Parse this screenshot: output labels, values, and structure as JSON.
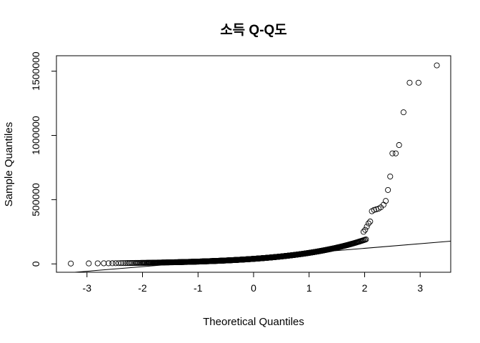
{
  "chart_data": {
    "type": "scatter",
    "title": "소득 Q-Q도",
    "xlabel": "Theoretical Quantiles",
    "ylabel": "Sample Quantiles",
    "xlim": [
      -3.55,
      3.55
    ],
    "ylim": [
      -65000,
      1620000
    ],
    "x_ticks": [
      -3,
      -2,
      -1,
      0,
      1,
      2,
      3
    ],
    "x_tick_labels": [
      "-3",
      "-2",
      "-1",
      "0",
      "1",
      "2",
      "3"
    ],
    "y_ticks": [
      0,
      500000,
      1000000,
      1500000
    ],
    "y_tick_labels": [
      "0",
      "500000",
      "1000000",
      "1500000"
    ],
    "grid": false,
    "reference_line": {
      "intercept": 50000,
      "slope": 35700
    },
    "outliers": [
      {
        "x": 1.98,
        "y": 250000
      },
      {
        "x": 2.01,
        "y": 265000
      },
      {
        "x": 2.04,
        "y": 290000
      },
      {
        "x": 2.07,
        "y": 315000
      },
      {
        "x": 2.1,
        "y": 330000
      },
      {
        "x": 2.13,
        "y": 410000
      },
      {
        "x": 2.17,
        "y": 420000
      },
      {
        "x": 2.21,
        "y": 425000
      },
      {
        "x": 2.25,
        "y": 430000
      },
      {
        "x": 2.29,
        "y": 440000
      },
      {
        "x": 2.34,
        "y": 460000
      },
      {
        "x": 2.38,
        "y": 490000
      },
      {
        "x": 2.42,
        "y": 575000
      },
      {
        "x": 2.46,
        "y": 680000
      },
      {
        "x": 2.5,
        "y": 860000
      },
      {
        "x": 2.56,
        "y": 860000
      },
      {
        "x": 2.62,
        "y": 925000
      },
      {
        "x": 2.7,
        "y": 1180000
      },
      {
        "x": 2.81,
        "y": 1410000
      },
      {
        "x": 2.97,
        "y": 1410000
      },
      {
        "x": 3.3,
        "y": 1545000
      }
    ]
  }
}
